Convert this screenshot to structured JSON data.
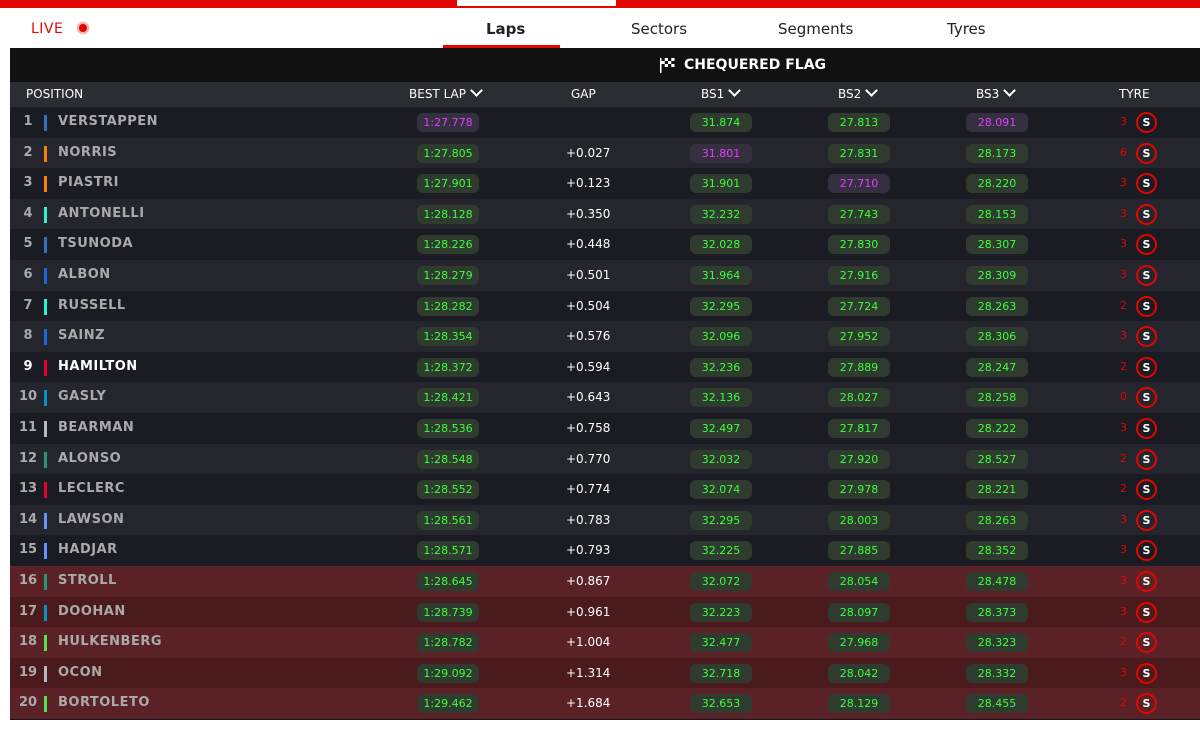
{
  "header": {
    "live_label": "LIVE",
    "tabs": [
      {
        "label": "Laps",
        "active": true
      },
      {
        "label": "Sectors",
        "active": false
      },
      {
        "label": "Segments",
        "active": false
      },
      {
        "label": "Tyres",
        "active": false
      }
    ]
  },
  "banner": {
    "text": "CHEQUERED FLAG",
    "icon": "chequered-flag-icon"
  },
  "columns": {
    "position": "POSITION",
    "best_lap": "BEST LAP",
    "gap": "GAP",
    "bs1": "BS1",
    "bs2": "BS2",
    "bs3": "BS3",
    "tyre": "TYRE"
  },
  "colors": {
    "accent": "#e10600",
    "personal_best": "#3cff3c",
    "overall_best": "#e040fb"
  },
  "rows": [
    {
      "pos": "1",
      "driver": "VERSTAPPEN",
      "team_color": "#3671C6",
      "best_lap": "1:27.778",
      "gap": "",
      "bs1": "31.874",
      "bs2": "27.813",
      "bs3": "28.091",
      "laps": "3",
      "tyre": "S",
      "purple": [
        "best_lap",
        "bs3"
      ]
    },
    {
      "pos": "2",
      "driver": "NORRIS",
      "team_color": "#FF8000",
      "best_lap": "1:27.805",
      "gap": "+0.027",
      "bs1": "31.801",
      "bs2": "27.831",
      "bs3": "28.173",
      "laps": "6",
      "tyre": "S",
      "purple": [
        "bs1"
      ]
    },
    {
      "pos": "3",
      "driver": "PIASTRI",
      "team_color": "#FF8000",
      "best_lap": "1:27.901",
      "gap": "+0.123",
      "bs1": "31.901",
      "bs2": "27.710",
      "bs3": "28.220",
      "laps": "3",
      "tyre": "S",
      "purple": [
        "bs2"
      ]
    },
    {
      "pos": "4",
      "driver": "ANTONELLI",
      "team_color": "#27F4D2",
      "best_lap": "1:28.128",
      "gap": "+0.350",
      "bs1": "32.232",
      "bs2": "27.743",
      "bs3": "28.153",
      "laps": "3",
      "tyre": "S",
      "purple": []
    },
    {
      "pos": "5",
      "driver": "TSUNODA",
      "team_color": "#3671C6",
      "best_lap": "1:28.226",
      "gap": "+0.448",
      "bs1": "32.028",
      "bs2": "27.830",
      "bs3": "28.307",
      "laps": "3",
      "tyre": "S",
      "purple": []
    },
    {
      "pos": "6",
      "driver": "ALBON",
      "team_color": "#1868DB",
      "best_lap": "1:28.279",
      "gap": "+0.501",
      "bs1": "31.964",
      "bs2": "27.916",
      "bs3": "28.309",
      "laps": "3",
      "tyre": "S",
      "purple": []
    },
    {
      "pos": "7",
      "driver": "RUSSELL",
      "team_color": "#27F4D2",
      "best_lap": "1:28.282",
      "gap": "+0.504",
      "bs1": "32.295",
      "bs2": "27.724",
      "bs3": "28.263",
      "laps": "2",
      "tyre": "S",
      "purple": []
    },
    {
      "pos": "8",
      "driver": "SAINZ",
      "team_color": "#1868DB",
      "best_lap": "1:28.354",
      "gap": "+0.576",
      "bs1": "32.096",
      "bs2": "27.952",
      "bs3": "28.306",
      "laps": "3",
      "tyre": "S",
      "purple": []
    },
    {
      "pos": "9",
      "driver": "HAMILTON",
      "team_color": "#E8002D",
      "best_lap": "1:28.372",
      "gap": "+0.594",
      "bs1": "32.236",
      "bs2": "27.889",
      "bs3": "28.247",
      "laps": "2",
      "tyre": "S",
      "purple": [],
      "highlight": true
    },
    {
      "pos": "10",
      "driver": "GASLY",
      "team_color": "#0093CC",
      "best_lap": "1:28.421",
      "gap": "+0.643",
      "bs1": "32.136",
      "bs2": "28.027",
      "bs3": "28.258",
      "laps": "0",
      "tyre": "S",
      "purple": []
    },
    {
      "pos": "11",
      "driver": "BEARMAN",
      "team_color": "#B6BABD",
      "best_lap": "1:28.536",
      "gap": "+0.758",
      "bs1": "32.497",
      "bs2": "27.817",
      "bs3": "28.222",
      "laps": "3",
      "tyre": "S",
      "purple": []
    },
    {
      "pos": "12",
      "driver": "ALONSO",
      "team_color": "#229971",
      "best_lap": "1:28.548",
      "gap": "+0.770",
      "bs1": "32.032",
      "bs2": "27.920",
      "bs3": "28.527",
      "laps": "2",
      "tyre": "S",
      "purple": []
    },
    {
      "pos": "13",
      "driver": "LECLERC",
      "team_color": "#E8002D",
      "best_lap": "1:28.552",
      "gap": "+0.774",
      "bs1": "32.074",
      "bs2": "27.978",
      "bs3": "28.221",
      "laps": "2",
      "tyre": "S",
      "purple": []
    },
    {
      "pos": "14",
      "driver": "LAWSON",
      "team_color": "#6692FF",
      "best_lap": "1:28.561",
      "gap": "+0.783",
      "bs1": "32.295",
      "bs2": "28.003",
      "bs3": "28.263",
      "laps": "3",
      "tyre": "S",
      "purple": []
    },
    {
      "pos": "15",
      "driver": "HADJAR",
      "team_color": "#6692FF",
      "best_lap": "1:28.571",
      "gap": "+0.793",
      "bs1": "32.225",
      "bs2": "27.885",
      "bs3": "28.352",
      "laps": "3",
      "tyre": "S",
      "purple": []
    },
    {
      "pos": "16",
      "driver": "STROLL",
      "team_color": "#229971",
      "best_lap": "1:28.645",
      "gap": "+0.867",
      "bs1": "32.072",
      "bs2": "28.054",
      "bs3": "28.478",
      "laps": "3",
      "tyre": "S",
      "purple": [],
      "eliminated": true
    },
    {
      "pos": "17",
      "driver": "DOOHAN",
      "team_color": "#0093CC",
      "best_lap": "1:28.739",
      "gap": "+0.961",
      "bs1": "32.223",
      "bs2": "28.097",
      "bs3": "28.373",
      "laps": "3",
      "tyre": "S",
      "purple": [],
      "eliminated": true
    },
    {
      "pos": "18",
      "driver": "HULKENBERG",
      "team_color": "#52E252",
      "best_lap": "1:28.782",
      "gap": "+1.004",
      "bs1": "32.477",
      "bs2": "27.968",
      "bs3": "28.323",
      "laps": "2",
      "tyre": "S",
      "purple": [],
      "eliminated": true
    },
    {
      "pos": "19",
      "driver": "OCON",
      "team_color": "#B6BABD",
      "best_lap": "1:29.092",
      "gap": "+1.314",
      "bs1": "32.718",
      "bs2": "28.042",
      "bs3": "28.332",
      "laps": "3",
      "tyre": "S",
      "purple": [],
      "eliminated": true
    },
    {
      "pos": "20",
      "driver": "BORTOLETO",
      "team_color": "#52E252",
      "best_lap": "1:29.462",
      "gap": "+1.684",
      "bs1": "32.653",
      "bs2": "28.129",
      "bs3": "28.455",
      "laps": "2",
      "tyre": "S",
      "purple": [],
      "eliminated": true
    }
  ]
}
